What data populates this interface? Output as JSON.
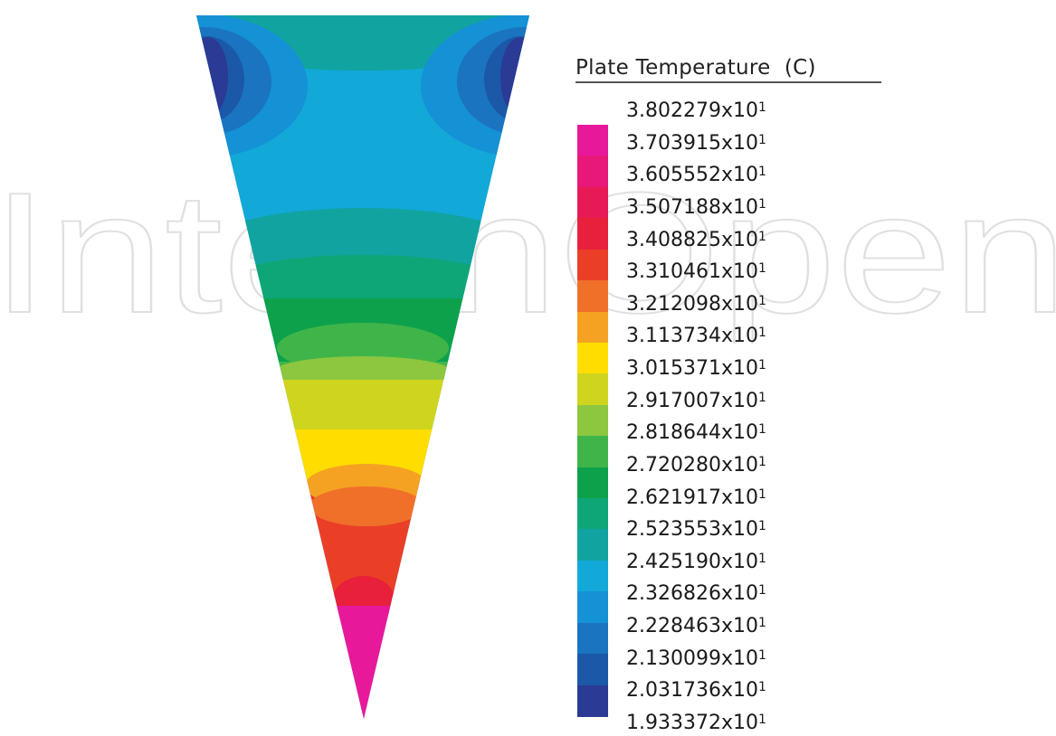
{
  "watermark": "IntechOpen",
  "legend": {
    "title": "Plate Temperature  (C)",
    "exponent": "1",
    "levels": [
      "3.802279x10",
      "3.703915x10",
      "3.605552x10",
      "3.507188x10",
      "3.408825x10",
      "3.310461x10",
      "3.212098x10",
      "3.113734x10",
      "3.015371x10",
      "2.917007x10",
      "2.818644x10",
      "2.720280x10",
      "2.621917x10",
      "2.523553x10",
      "2.425190x10",
      "2.326826x10",
      "2.228463x10",
      "2.130099x10",
      "2.031736x10",
      "1.933372x10"
    ],
    "colors": [
      "#e8189a",
      "#e81878",
      "#e81a55",
      "#e8203b",
      "#ea3f26",
      "#f0702a",
      "#f5a222",
      "#ffdd00",
      "#cfd51f",
      "#8dc63f",
      "#3fb549",
      "#0da14b",
      "#0fa677",
      "#11a3a0",
      "#12a8d8",
      "#1591d5",
      "#1a74bf",
      "#1b58a8",
      "#2b3a94"
    ]
  }
}
